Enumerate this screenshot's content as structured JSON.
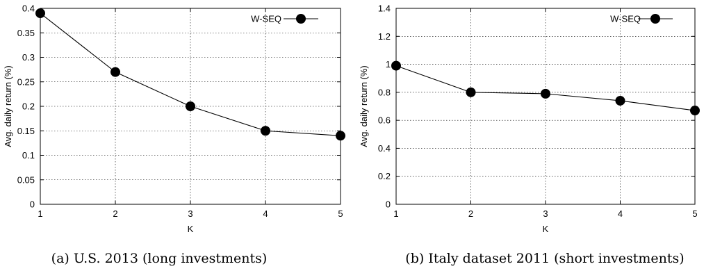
{
  "chart_data": [
    {
      "type": "line",
      "caption": "(a) U.S. 2013 (long investments)",
      "xlabel": "K",
      "ylabel": "Avg. daily return (%)",
      "x": [
        1,
        2,
        3,
        4,
        5
      ],
      "xticks": [
        "1",
        "2",
        "3",
        "4",
        "5"
      ],
      "xlim": [
        1,
        5
      ],
      "ylim": [
        0,
        0.4
      ],
      "yticks": [
        "0",
        "0.05",
        "0.1",
        "0.15",
        "0.2",
        "0.25",
        "0.3",
        "0.35",
        "0.4"
      ],
      "ytick_values": [
        0,
        0.05,
        0.1,
        0.15,
        0.2,
        0.25,
        0.3,
        0.35,
        0.4
      ],
      "grid": true,
      "legend": "top-right",
      "series": [
        {
          "name": "W-SEQ",
          "values": [
            0.39,
            0.27,
            0.2,
            0.15,
            0.14
          ]
        }
      ]
    },
    {
      "type": "line",
      "caption": "(b) Italy dataset 2011 (short investments)",
      "xlabel": "K",
      "ylabel": "Avg. daily return (%)",
      "x": [
        1,
        2,
        3,
        4,
        5
      ],
      "xticks": [
        "1",
        "2",
        "3",
        "4",
        "5"
      ],
      "xlim": [
        1,
        5
      ],
      "ylim": [
        0,
        1.4
      ],
      "yticks": [
        "0",
        "0.2",
        "0.4",
        "0.6",
        "0.8",
        "1",
        "1.2",
        "1.4"
      ],
      "ytick_values": [
        0,
        0.2,
        0.4,
        0.6,
        0.8,
        1,
        1.2,
        1.4
      ],
      "grid": true,
      "legend": "top-right",
      "series": [
        {
          "name": "W-SEQ",
          "values": [
            0.99,
            0.8,
            0.79,
            0.74,
            0.67
          ]
        }
      ]
    }
  ]
}
